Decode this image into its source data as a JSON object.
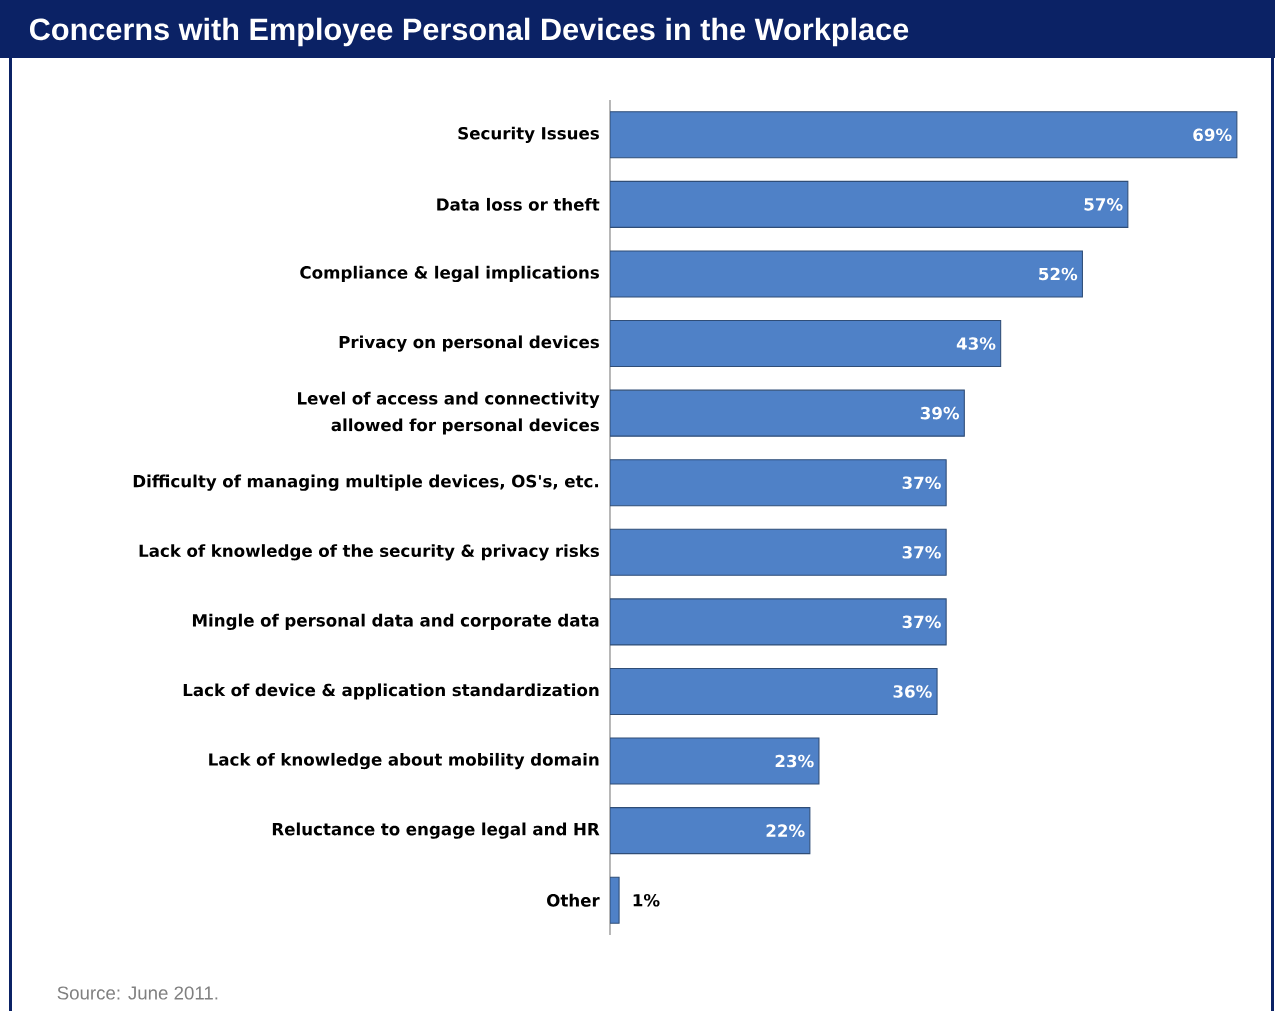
{
  "chart_data": {
    "type": "bar",
    "orientation": "horizontal",
    "title": "Concerns with Employee Personal Devices in the Workplace",
    "categories": [
      "Security Issues",
      "Data loss or theft",
      "Compliance & legal implications",
      "Privacy on personal devices",
      "Level of access and connectivity allowed for personal devices",
      "Difficulty of managing multiple devices, OS's, etc.",
      "Lack of knowledge of the security & privacy risks",
      "Mingle of personal data and corporate data",
      "Lack of device & application standardization",
      "Lack of knowledge about mobility domain",
      "Reluctance to engage legal and HR",
      "Other"
    ],
    "values": [
      69,
      57,
      52,
      43,
      39,
      37,
      37,
      37,
      36,
      23,
      22,
      1
    ],
    "value_labels": [
      "69%",
      "57%",
      "52%",
      "43%",
      "39%",
      "37%",
      "37%",
      "37%",
      "36%",
      "23%",
      "22%",
      "1%"
    ],
    "color": "#4f81c7",
    "annotations": [
      "Source: June 2011."
    ]
  }
}
